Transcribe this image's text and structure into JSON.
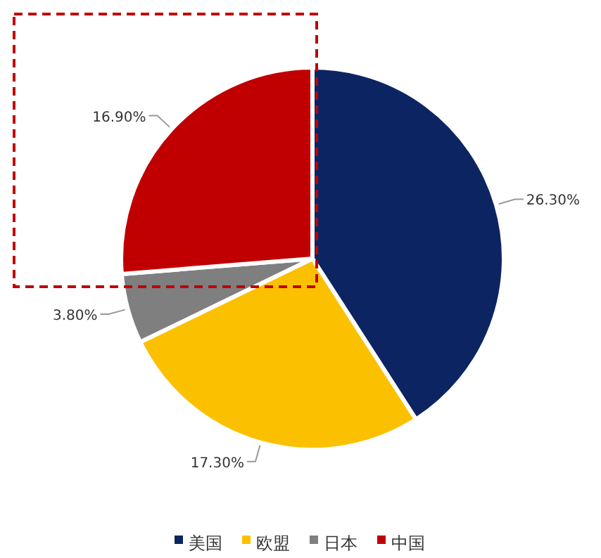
{
  "chart_data": {
    "type": "pie",
    "categories": [
      "美国",
      "欧盟",
      "日本",
      "中国"
    ],
    "values": [
      26.3,
      17.3,
      3.8,
      16.9
    ],
    "value_labels": [
      "26.30%",
      "17.30%",
      "3.80%",
      "16.90%"
    ],
    "colors": [
      "#0d2462",
      "#fbc100",
      "#7f7f7f",
      "#c00000"
    ],
    "legend": "bottom"
  }
}
